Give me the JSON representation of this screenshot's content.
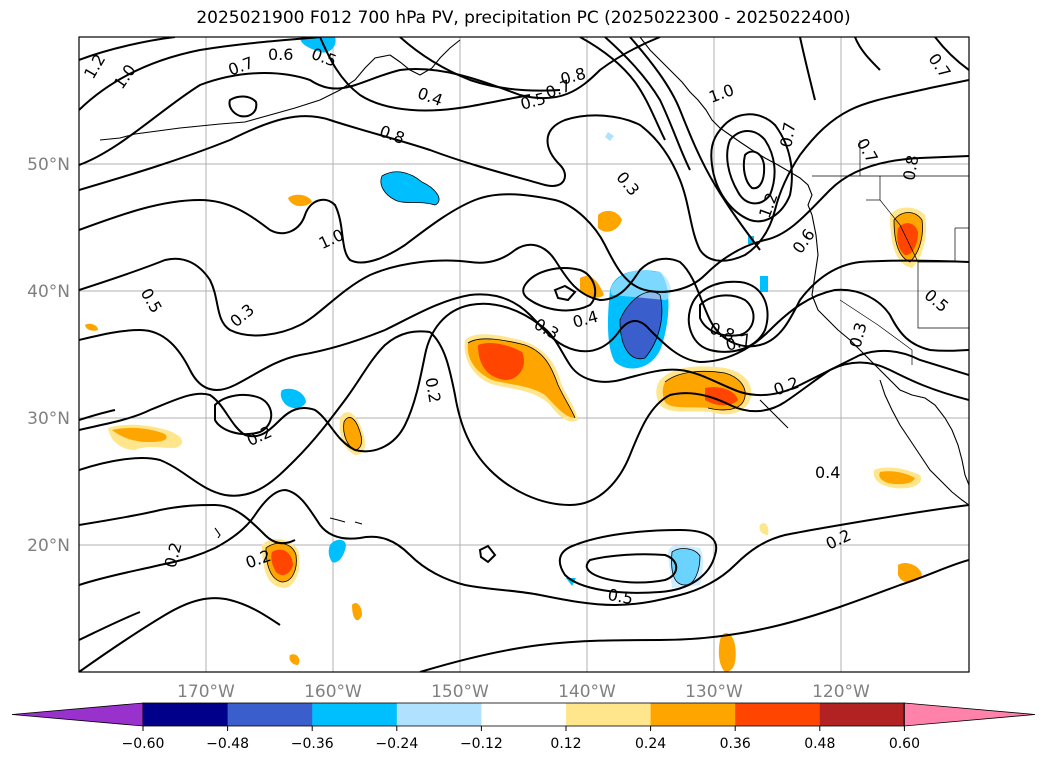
{
  "title": "2025021900 F012 700 hPa PV, precipitation PC (2025022300 - 2025022400)",
  "map": {
    "lat_labels": [
      "50°N",
      "40°N",
      "30°N",
      "20°N"
    ],
    "lon_labels": [
      "170°W",
      "160°W",
      "150°W",
      "140°W",
      "130°W",
      "120°W"
    ],
    "contour_labels": [
      "1.2",
      "1.0",
      "0.7",
      "0.6",
      "0.5",
      "0.4",
      "0.8",
      "0.5",
      "0.7",
      "0.8",
      "1.0",
      "0.3",
      "0.7",
      "1.2",
      "0.6",
      "0.7",
      "0.8",
      "0.7",
      "0.5",
      "1.0",
      "0.5",
      "0.3",
      "0.3",
      "0.4",
      "0.2",
      "0.8",
      "0.7",
      "0.3",
      "0.2",
      "0.2",
      "0.2",
      "0.4",
      "0.2",
      "0.2",
      "0.5"
    ]
  },
  "colorbar": {
    "ticks": [
      "−0.60",
      "−0.48",
      "−0.36",
      "−0.24",
      "−0.12",
      "0.12",
      "0.24",
      "0.36",
      "0.48",
      "0.60"
    ],
    "colors": [
      "#9932cc",
      "#00008b",
      "#3a5fcd",
      "#00bfff",
      "#b0e2ff",
      "#ffffff",
      "#ffe68c",
      "#ffa500",
      "#ff4500",
      "#b22222",
      "#ff82ab"
    ]
  }
}
